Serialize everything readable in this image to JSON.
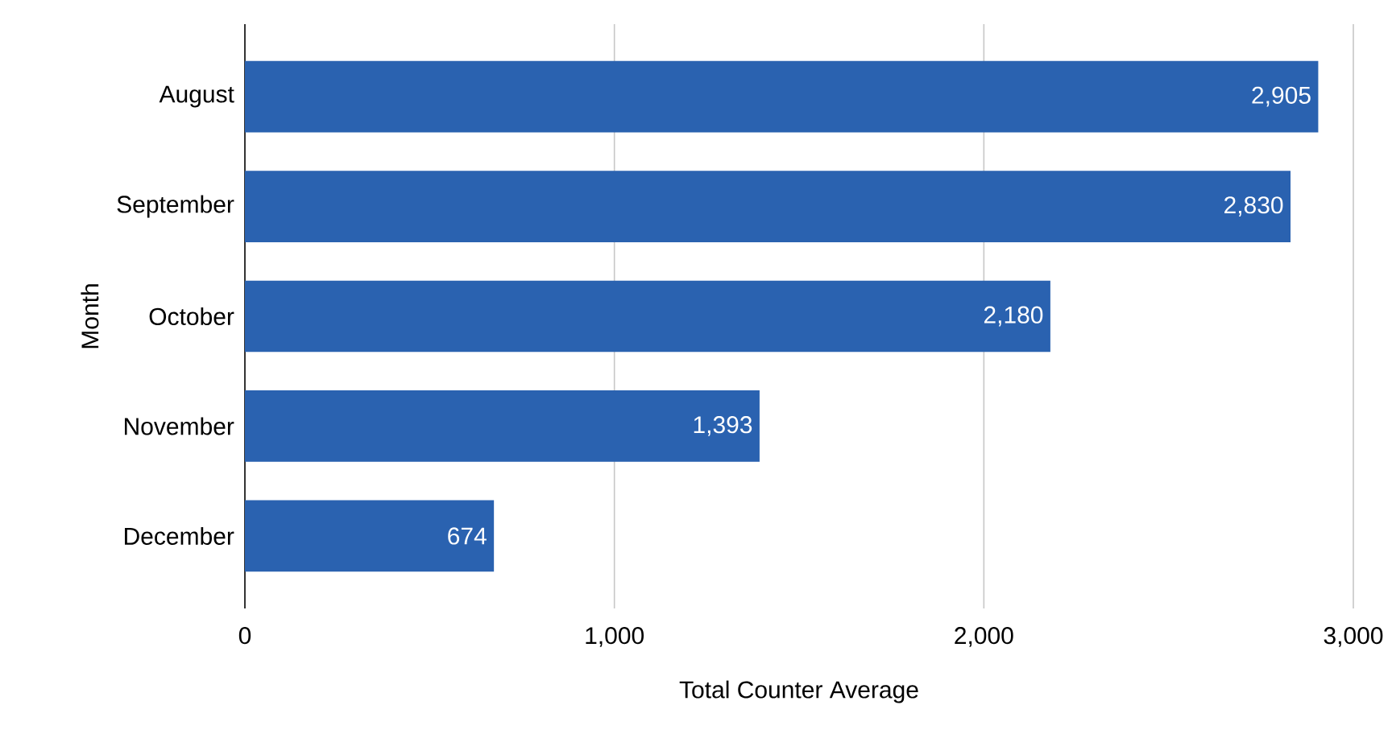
{
  "chart_data": {
    "type": "bar",
    "orientation": "horizontal",
    "xlabel": "Total Counter Average",
    "ylabel": "Month",
    "categories": [
      "August",
      "September",
      "October",
      "November",
      "December"
    ],
    "values": [
      2905,
      2830,
      2180,
      1393,
      674
    ],
    "value_labels": [
      "2,905",
      "2,830",
      "2,180",
      "1,393",
      "674"
    ],
    "color": "#2a62b0",
    "xlim": [
      0,
      3000
    ],
    "xticks": [
      0,
      {
        "value": 1000,
        "label": "1,000"
      },
      {
        "value": 2000,
        "label": "2,000"
      },
      {
        "value": 3000,
        "label": "3,000"
      }
    ],
    "grid": "x"
  }
}
